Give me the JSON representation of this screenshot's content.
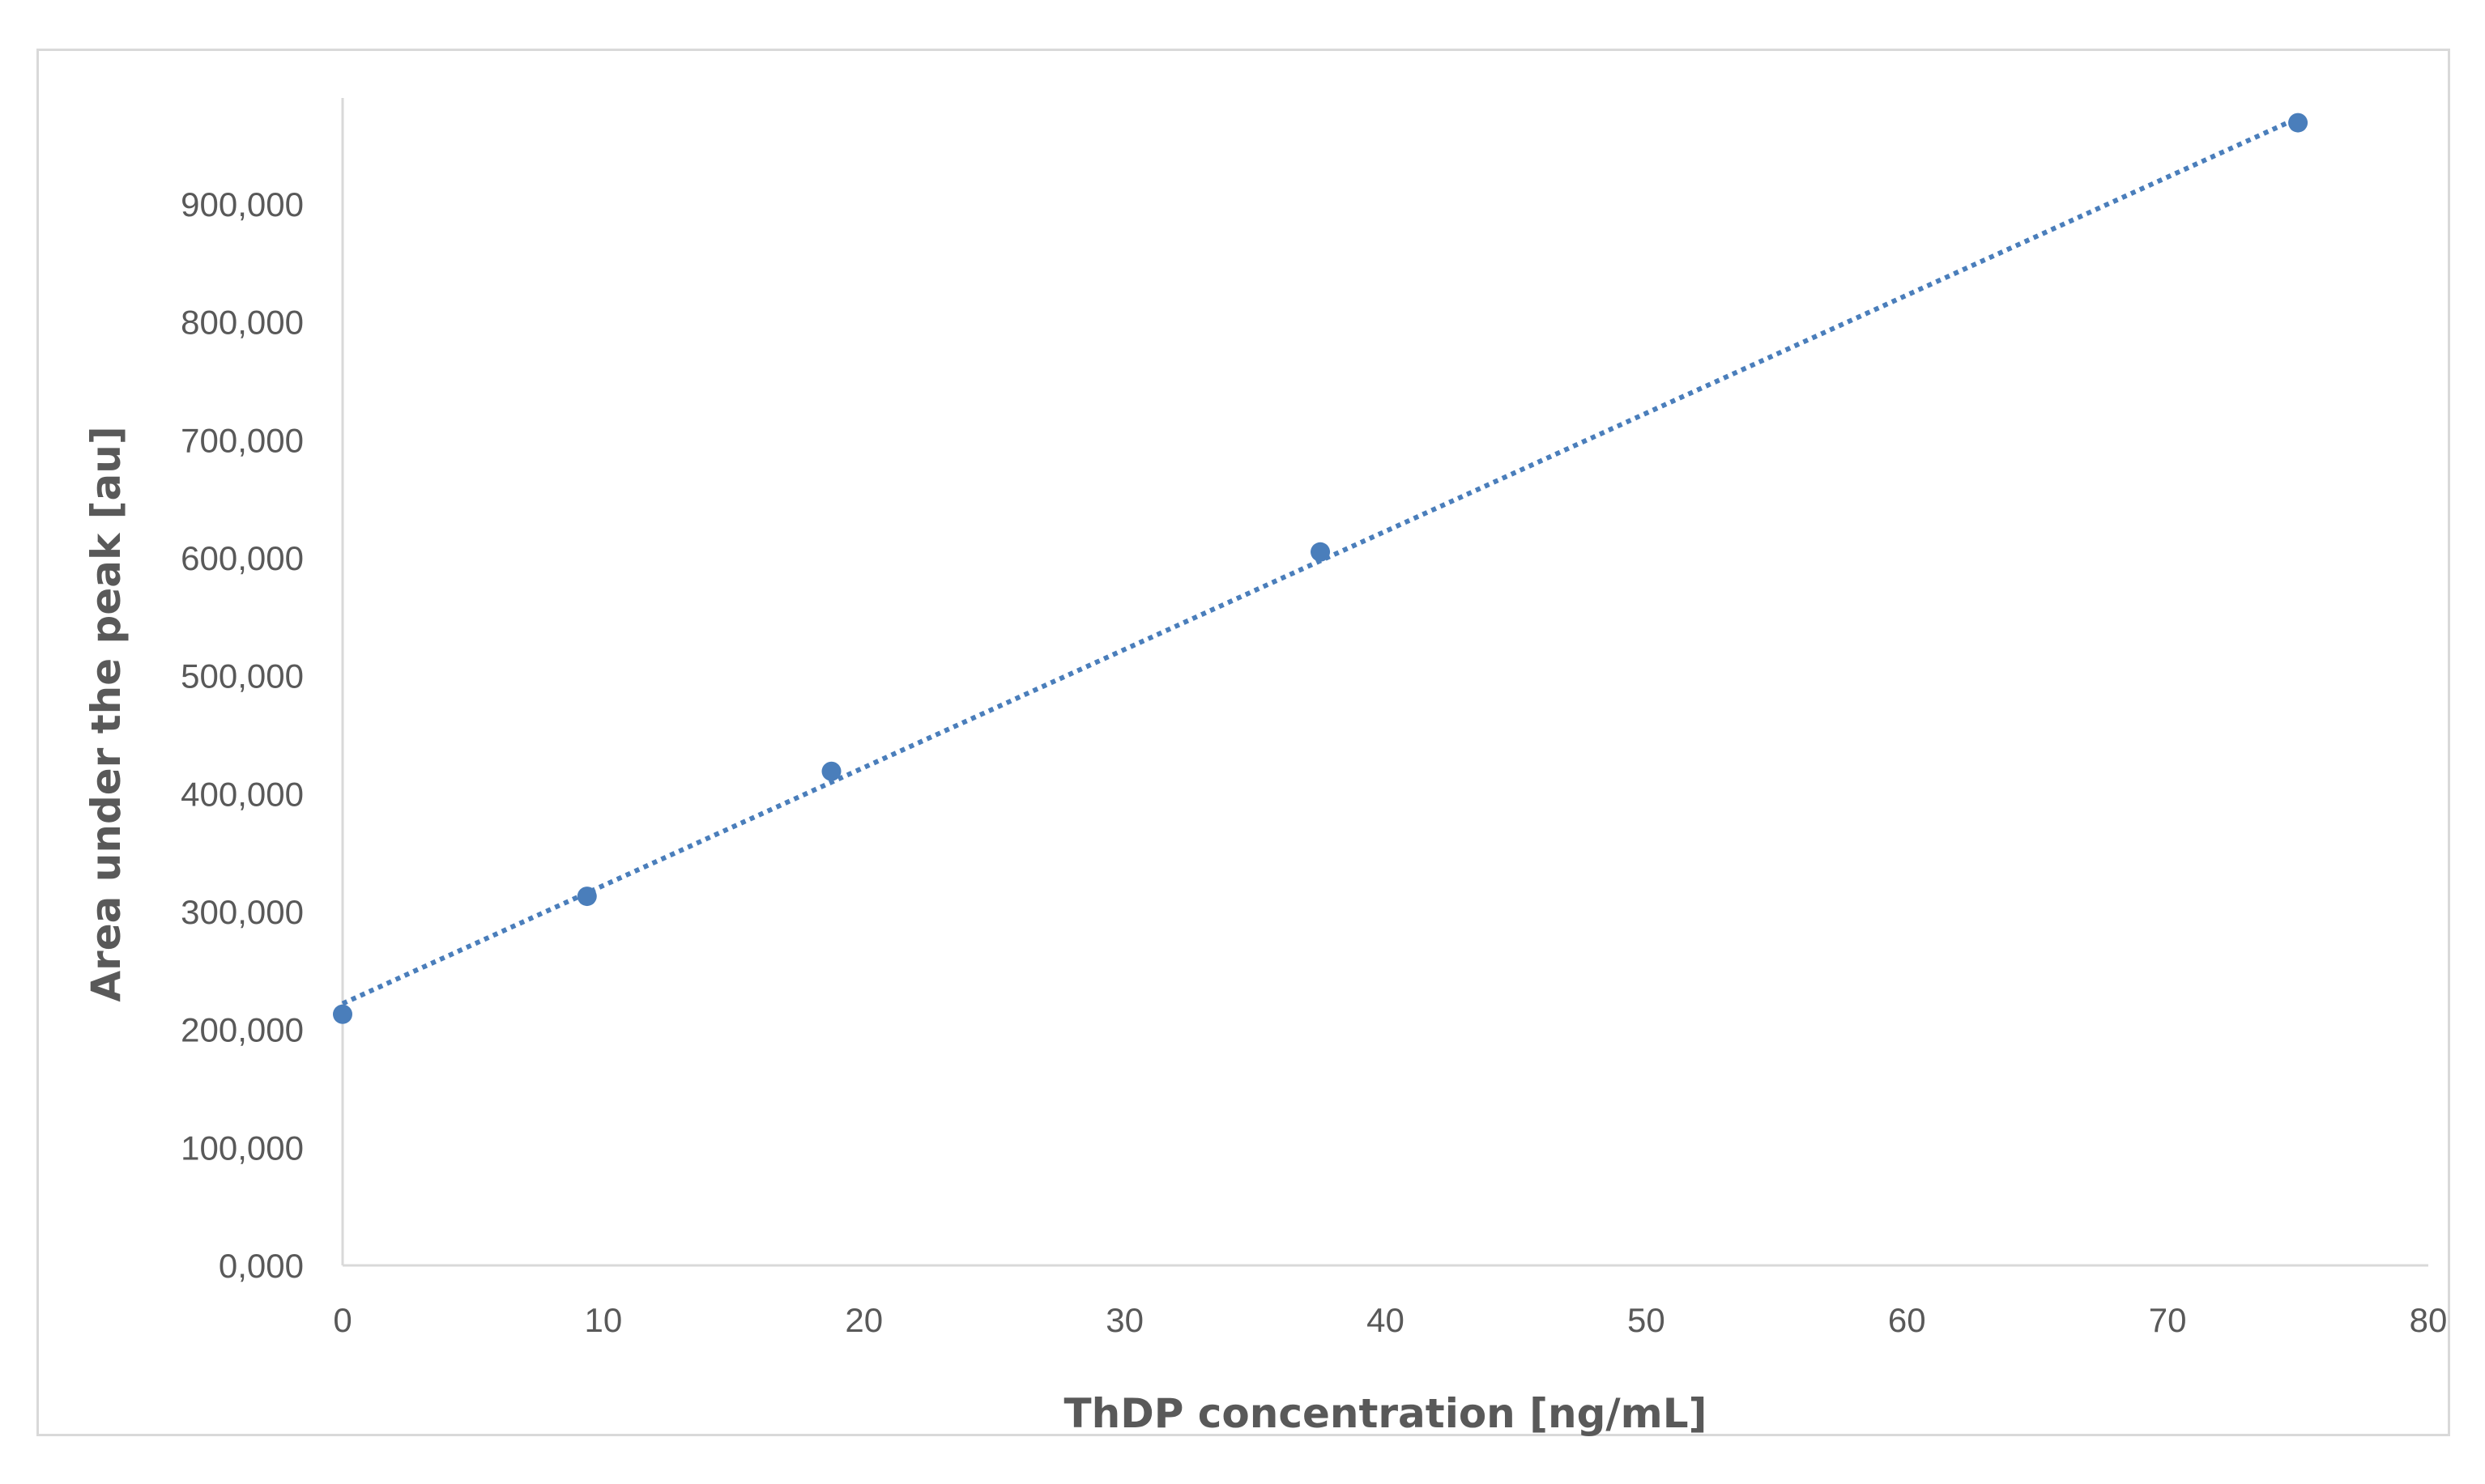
{
  "colors": {
    "marker": "#4a7ebb",
    "trendline": "#4a7ebb",
    "axis": "#d9d9d9",
    "text": "#595959"
  },
  "chart_data": {
    "type": "scatter",
    "title": "",
    "xlabel": "ThDP concentration [ng/mL]",
    "ylabel": "Area under the peak [au]",
    "xlim": [
      0,
      80
    ],
    "ylim": [
      0,
      990000
    ],
    "x_ticks": [
      {
        "value": 0,
        "label": "0"
      },
      {
        "value": 10,
        "label": "10"
      },
      {
        "value": 20,
        "label": "20"
      },
      {
        "value": 30,
        "label": "30"
      },
      {
        "value": 40,
        "label": "40"
      },
      {
        "value": 50,
        "label": "50"
      },
      {
        "value": 60,
        "label": "60"
      },
      {
        "value": 70,
        "label": "70"
      },
      {
        "value": 80,
        "label": "80"
      }
    ],
    "y_ticks": [
      {
        "value": 0,
        "label": "0,000"
      },
      {
        "value": 100000,
        "label": "100,000"
      },
      {
        "value": 200000,
        "label": "200,000"
      },
      {
        "value": 300000,
        "label": "300,000"
      },
      {
        "value": 400000,
        "label": "400,000"
      },
      {
        "value": 500000,
        "label": "500,000"
      },
      {
        "value": 600000,
        "label": "600,000"
      },
      {
        "value": 700000,
        "label": "700,000"
      },
      {
        "value": 800000,
        "label": "800,000"
      },
      {
        "value": 900000,
        "label": "900,000"
      }
    ],
    "grid": false,
    "legend": "none",
    "series": [
      {
        "points": [
          {
            "x": 0,
            "y": 213000
          },
          {
            "x": 9.375,
            "y": 313000
          },
          {
            "x": 18.75,
            "y": 419000
          },
          {
            "x": 37.5,
            "y": 605000
          },
          {
            "x": 75,
            "y": 969000
          }
        ],
        "trendline": {
          "type": "linear",
          "style": "dotted",
          "from": {
            "x": 0,
            "y": 222000
          },
          "to": {
            "x": 75,
            "y": 973000
          }
        }
      }
    ]
  }
}
